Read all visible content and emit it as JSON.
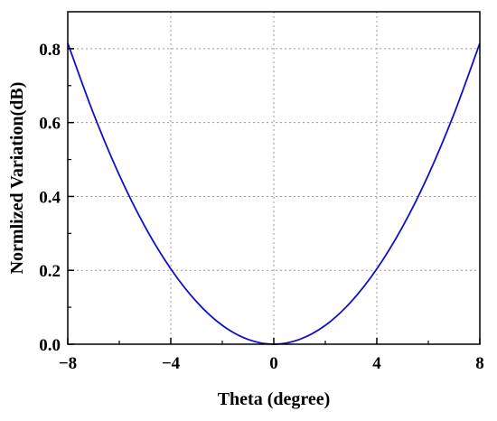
{
  "chart_data": {
    "type": "line",
    "xlabel": "Theta (degree)",
    "ylabel": "Normlized Variation(dB)",
    "xlim": [
      -8,
      8
    ],
    "ylim": [
      0,
      0.9
    ],
    "xticks": [
      -8,
      -4,
      0,
      4,
      8
    ],
    "xtick_labels": [
      "−8",
      "−4",
      "0",
      "4",
      "8"
    ],
    "yticks": [
      0.0,
      0.2,
      0.4,
      0.6,
      0.8
    ],
    "ytick_labels": [
      "0.0",
      "0.2",
      "0.4",
      "0.6",
      "0.8"
    ],
    "grid": true,
    "series": [
      {
        "color": "#1010cc",
        "x": [
          -8,
          -7,
          -6,
          -5,
          -4,
          -3,
          -2,
          -1,
          0,
          1,
          2,
          3,
          4,
          5,
          6,
          7,
          8
        ],
        "y": [
          0.815,
          0.624,
          0.458,
          0.318,
          0.204,
          0.115,
          0.051,
          0.013,
          0.0,
          0.013,
          0.051,
          0.115,
          0.204,
          0.318,
          0.458,
          0.624,
          0.815
        ]
      }
    ]
  }
}
